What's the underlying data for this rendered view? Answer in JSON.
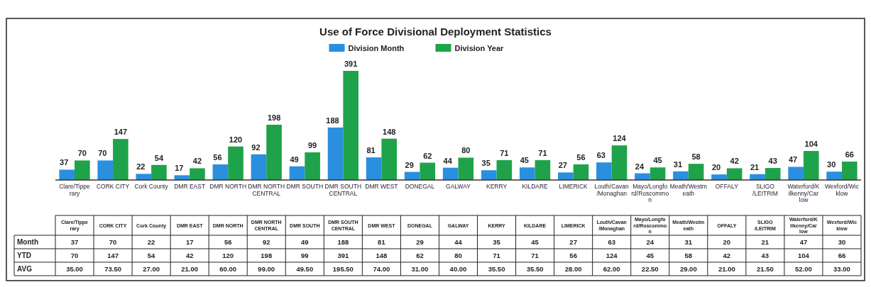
{
  "chart_data": {
    "type": "bar",
    "title": "Use of Force Divisional Deployment Statistics",
    "categories": [
      "Clare/Tipperary",
      "CORK CITY",
      "Cork County",
      "DMR EAST",
      "DMR NORTH",
      "DMR NORTH CENTRAL",
      "DMR SOUTH",
      "DMR SOUTH CENTRAL",
      "DMR WEST",
      "DONEGAL",
      "GALWAY",
      "KERRY",
      "KILDARE",
      "LIMERICK",
      "Louth/Cavan/Monaghan",
      "Mayo/Longford/Roscommon",
      "Meath/Westmeath",
      "OFFALY",
      "SLIGO /LEITRIM",
      "Waterford/Kilkenny/Carlow",
      "Wexford/Wicklow"
    ],
    "series": [
      {
        "name": "Division Month",
        "color": "#2b8fe0",
        "values": [
          37,
          70,
          22,
          17,
          56,
          92,
          49,
          188,
          81,
          29,
          44,
          35,
          45,
          27,
          63,
          24,
          31,
          20,
          21,
          47,
          30
        ]
      },
      {
        "name": "Division Year",
        "color": "#1ea34a",
        "values": [
          70,
          147,
          54,
          42,
          120,
          198,
          99,
          391,
          148,
          62,
          80,
          71,
          71,
          56,
          124,
          45,
          58,
          42,
          43,
          104,
          66
        ]
      }
    ],
    "data_labels": true,
    "legend": "top",
    "annotations": [
      "Month",
      "YTD",
      "AVG",
      "37",
      "70",
      "22",
      "17",
      "56",
      "92",
      "49",
      "188",
      "81",
      "29",
      "44",
      "35",
      "45",
      "27",
      "63",
      "24",
      "31",
      "20",
      "21",
      "47",
      "30",
      "70",
      "147",
      "54",
      "42",
      "120",
      "198",
      "99",
      "391",
      "148",
      "62",
      "80",
      "71",
      "71",
      "56",
      "124",
      "45",
      "58",
      "42",
      "43",
      "104",
      "66",
      "35.00",
      "73.50",
      "27.00",
      "21.00",
      "60.00",
      "99.00",
      "49.50",
      "195.50",
      "74.00",
      "31.00",
      "40.00",
      "35.50",
      "35.50",
      "28.00",
      "62.00",
      "22.50",
      "29.00",
      "21.00",
      "21.50",
      "52.00",
      "33.00"
    ]
  }
}
